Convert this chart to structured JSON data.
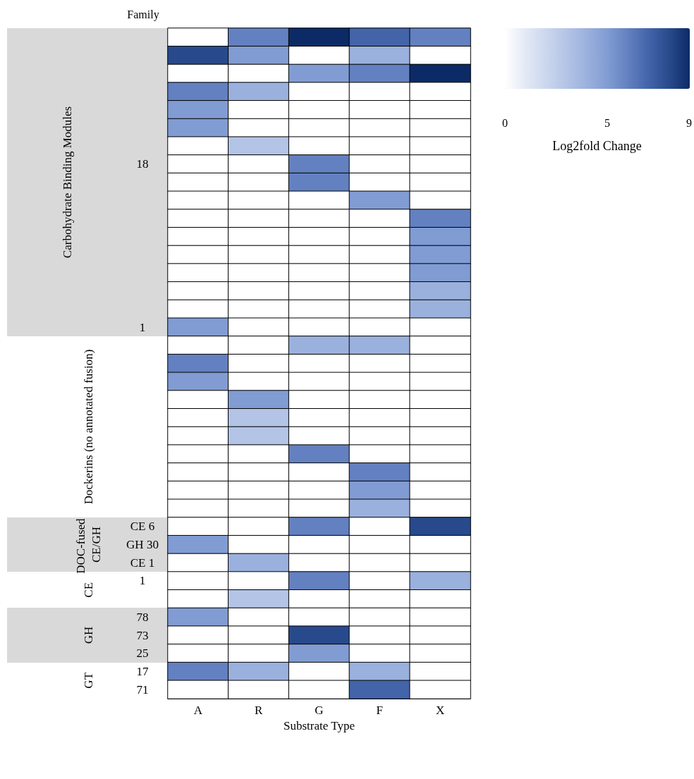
{
  "chart_data": {
    "type": "heatmap",
    "xlabel": "Substrate Type",
    "ylabel": "Family",
    "clabel": "Log2fold Change",
    "clim": [
      0,
      9
    ],
    "cticks": [
      0,
      5,
      9
    ],
    "annotations": [
      "Carbohydrate Binding Modules",
      "Dockerins (no annotated fusion)",
      "DOC-fused CE/GH",
      "CE",
      "GH",
      "GT"
    ],
    "categories": [
      "A",
      "R",
      "G",
      "F",
      "X"
    ],
    "y_categories": [
      null,
      null,
      null,
      null,
      null,
      null,
      null,
      "18",
      null,
      null,
      null,
      null,
      null,
      null,
      null,
      null,
      "1",
      null,
      null,
      null,
      null,
      null,
      null,
      null,
      null,
      null,
      null,
      "CE 6",
      "GH 30",
      "CE 1",
      "1",
      null,
      "78",
      "73",
      "25",
      "17",
      "71"
    ],
    "cells": [
      [
        0,
        6,
        9,
        7,
        6
      ],
      [
        8,
        5,
        0,
        4,
        0
      ],
      [
        0,
        0,
        5,
        6,
        9
      ],
      [
        6,
        4,
        0,
        0,
        0
      ],
      [
        5,
        0,
        0,
        0,
        0
      ],
      [
        5,
        0,
        0,
        0,
        0
      ],
      [
        0,
        3,
        0,
        0,
        0
      ],
      [
        0,
        0,
        6,
        0,
        0
      ],
      [
        0,
        0,
        6,
        0,
        0
      ],
      [
        0,
        0,
        0,
        5,
        0
      ],
      [
        0,
        0,
        0,
        0,
        6
      ],
      [
        0,
        0,
        0,
        0,
        5
      ],
      [
        0,
        0,
        0,
        0,
        5
      ],
      [
        0,
        0,
        0,
        0,
        5
      ],
      [
        0,
        0,
        0,
        0,
        4
      ],
      [
        0,
        0,
        0,
        0,
        4
      ],
      [
        5,
        0,
        0,
        0,
        0
      ],
      [
        0,
        0,
        4,
        4,
        0
      ],
      [
        6,
        0,
        0,
        0,
        0
      ],
      [
        5,
        0,
        0,
        0,
        0
      ],
      [
        0,
        5,
        0,
        0,
        0
      ],
      [
        0,
        3,
        0,
        0,
        0
      ],
      [
        0,
        3,
        0,
        0,
        0
      ],
      [
        0,
        0,
        6,
        0,
        0
      ],
      [
        0,
        0,
        0,
        6,
        0
      ],
      [
        0,
        0,
        0,
        5,
        0
      ],
      [
        0,
        0,
        0,
        4,
        0
      ],
      [
        0,
        0,
        6,
        0,
        8
      ],
      [
        5,
        0,
        0,
        0,
        0
      ],
      [
        0,
        4,
        0,
        0,
        0
      ],
      [
        0,
        0,
        6,
        0,
        4
      ],
      [
        0,
        3,
        0,
        0,
        0
      ],
      [
        5,
        0,
        0,
        0,
        0
      ],
      [
        0,
        0,
        8,
        0,
        0
      ],
      [
        0,
        0,
        5,
        0,
        0
      ],
      [
        6,
        4,
        0,
        4,
        0
      ],
      [
        0,
        0,
        0,
        7,
        0
      ]
    ]
  }
}
